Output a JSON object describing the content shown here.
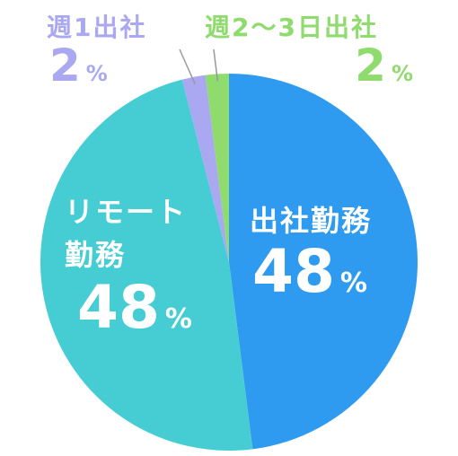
{
  "chart_data": {
    "type": "pie",
    "categories": [
      "出社勤務",
      "リモート\n勤務",
      "週1出社",
      "週2～3日出社"
    ],
    "values": [
      48,
      48,
      2,
      2
    ],
    "unit": "%",
    "colors": [
      "#2e9bf0",
      "#46cdd4",
      "#aaa8f0",
      "#8fdb6e"
    ]
  }
}
